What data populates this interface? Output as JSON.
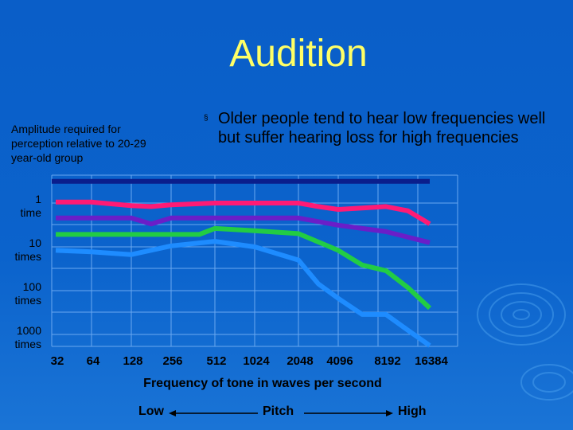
{
  "title": "Audition",
  "y_caption": "Amplitude required for perception relative to 20-29 year-old group",
  "bullet": {
    "marker": "§",
    "text": "Older people tend to hear low frequencies well but suffer hearing loss for high frequencies"
  },
  "pitch": {
    "low": "Low",
    "mid": "Pitch",
    "high": "High"
  },
  "colors": {
    "background": "#0b63cc",
    "title": "#ffff66",
    "grid": "#6aa8f0"
  },
  "chart_data": {
    "type": "line",
    "title": "",
    "xlabel": "Frequency of tone in waves per second",
    "ylabel": "Amplitude required for perception relative to 20-29 year-old group",
    "x": [
      32,
      64,
      128,
      256,
      512,
      1024,
      2048,
      4096,
      8192,
      16384
    ],
    "x_tick_labels": [
      "32",
      "64",
      "128",
      "256",
      "512",
      "1024",
      "2048",
      "4096",
      "8192",
      "16384"
    ],
    "y_scale": "log",
    "y_ticks": [
      1,
      10,
      100,
      1000
    ],
    "y_tick_labels": [
      "1\ntime",
      "10\ntimes",
      "100\ntimes",
      "1000\ntimes"
    ],
    "ylim": [
      0.3,
      1000
    ],
    "grid": true,
    "series": [
      {
        "color": "#0a1e8c",
        "x": [
          32,
          16384
        ],
        "values": [
          0.32,
          0.32
        ]
      },
      {
        "color": "#ff1a75",
        "x": [
          32,
          64,
          128,
          181,
          256,
          512,
          1024,
          2048,
          2896,
          4096,
          5800,
          8192,
          11585,
          16384
        ],
        "values": [
          0.95,
          0.95,
          1.15,
          1.2,
          1.1,
          1.0,
          1.0,
          1.0,
          1.2,
          1.4,
          1.3,
          1.2,
          1.5,
          3.0
        ]
      },
      {
        "color": "#6a1ec8",
        "x": [
          32,
          64,
          128,
          181,
          256,
          512,
          1024,
          2048,
          4096,
          8192,
          16384
        ],
        "values": [
          2.2,
          2.2,
          2.2,
          3.0,
          2.2,
          2.2,
          2.2,
          2.2,
          3.2,
          4.5,
          8.0
        ]
      },
      {
        "color": "#22cc44",
        "x": [
          32,
          64,
          128,
          256,
          400,
          512,
          1024,
          2048,
          4096,
          5800,
          8192,
          11585,
          16384
        ],
        "values": [
          5.2,
          5.2,
          5.2,
          5.2,
          5.2,
          3.8,
          4.3,
          5.0,
          12.0,
          26.0,
          35.0,
          85.0,
          250.0
        ]
      },
      {
        "color": "#1e8cff",
        "x": [
          32,
          64,
          128,
          256,
          512,
          1024,
          2048,
          2896,
          4096,
          5800,
          8192,
          11585,
          16384
        ],
        "values": [
          12.0,
          13.0,
          15.0,
          9.5,
          7.5,
          10.0,
          20.0,
          70.0,
          150.0,
          350.0,
          350.0,
          800.0,
          1800.0
        ]
      }
    ]
  }
}
